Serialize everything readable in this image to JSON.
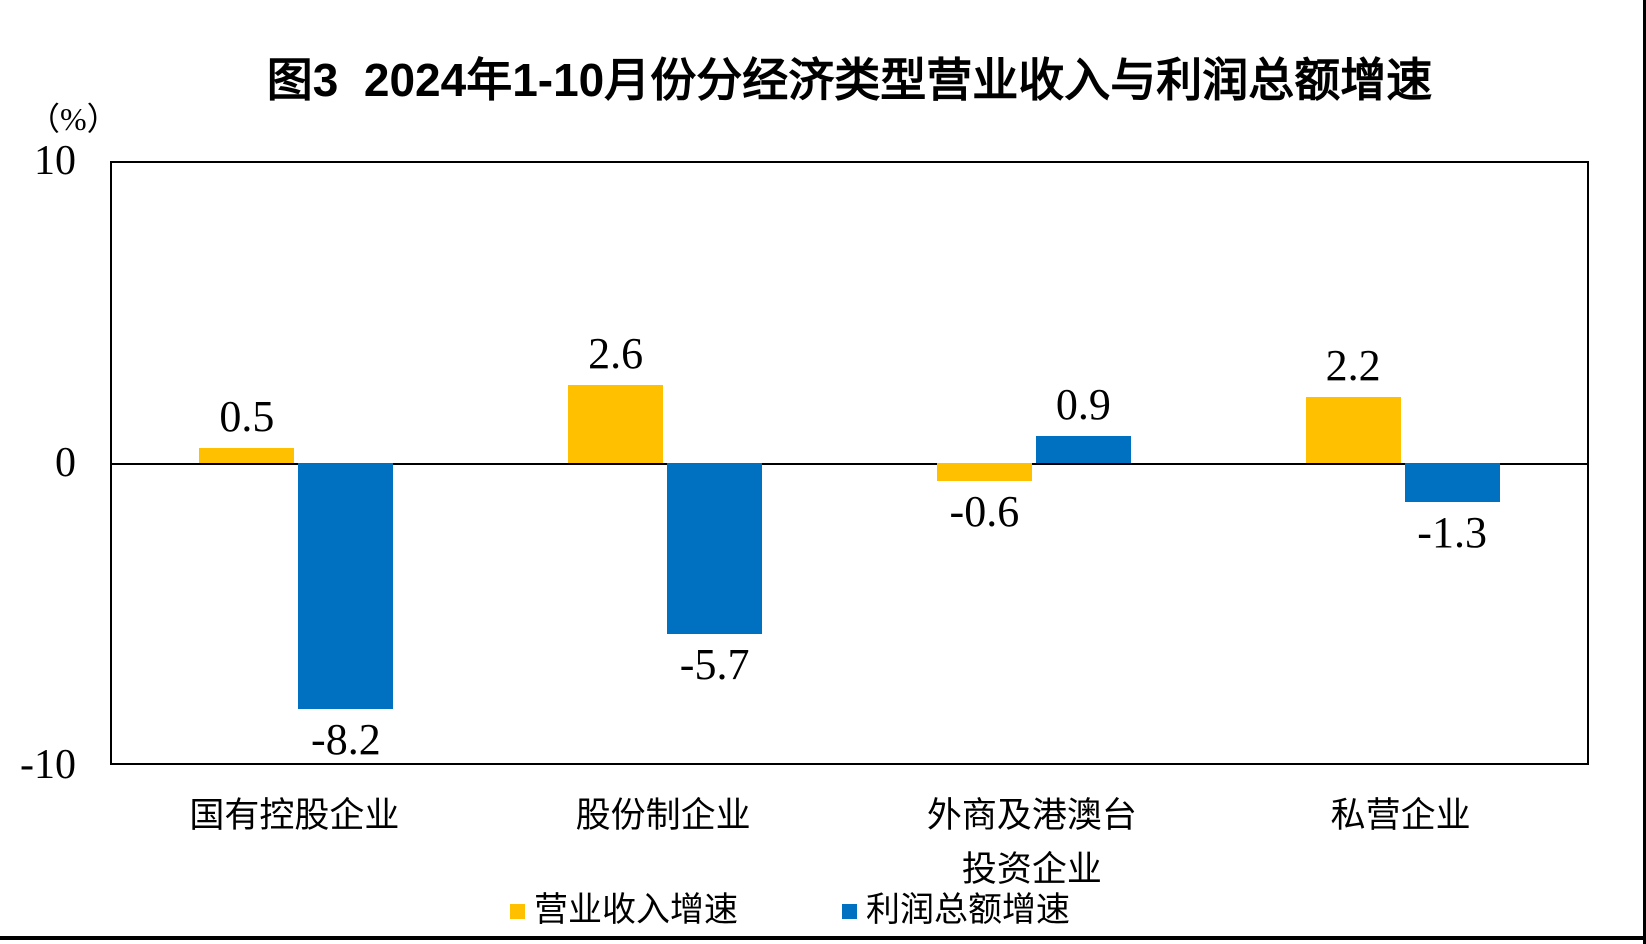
{
  "title": "图3  2024年1-10月份分经济类型营业收入与利润总额增速",
  "y_axis": {
    "unit_label": "（%）",
    "ticks": [
      "10",
      "0",
      "-10"
    ]
  },
  "legend": [
    {
      "label": "营业收入增速",
      "color": "#FFC000"
    },
    {
      "label": "利润总额增速",
      "color": "#0070C0"
    }
  ],
  "chart_data": {
    "type": "bar",
    "title": "图3 2024年1-10月份分经济类型营业收入与利润总额增速",
    "categories": [
      "国有控股企业",
      "股份制企业",
      "外商及港澳台\n投资企业",
      "私营企业"
    ],
    "series": [
      {
        "name": "营业收入增速",
        "color": "#FFC000",
        "values": [
          0.5,
          2.6,
          -0.6,
          2.2
        ],
        "labels": [
          "0.5",
          "2.6",
          "-0.6",
          "2.2"
        ]
      },
      {
        "name": "利润总额增速",
        "color": "#0070C0",
        "values": [
          -8.2,
          -5.7,
          0.9,
          -1.3
        ],
        "labels": [
          "-8.2",
          "-5.7",
          "0.9",
          "-1.3"
        ]
      }
    ],
    "ylabel": "（%）",
    "ylim": [
      -10,
      10
    ],
    "grid": false,
    "legend_position": "bottom",
    "axis_color": "#000000",
    "background": "#ffffff"
  }
}
